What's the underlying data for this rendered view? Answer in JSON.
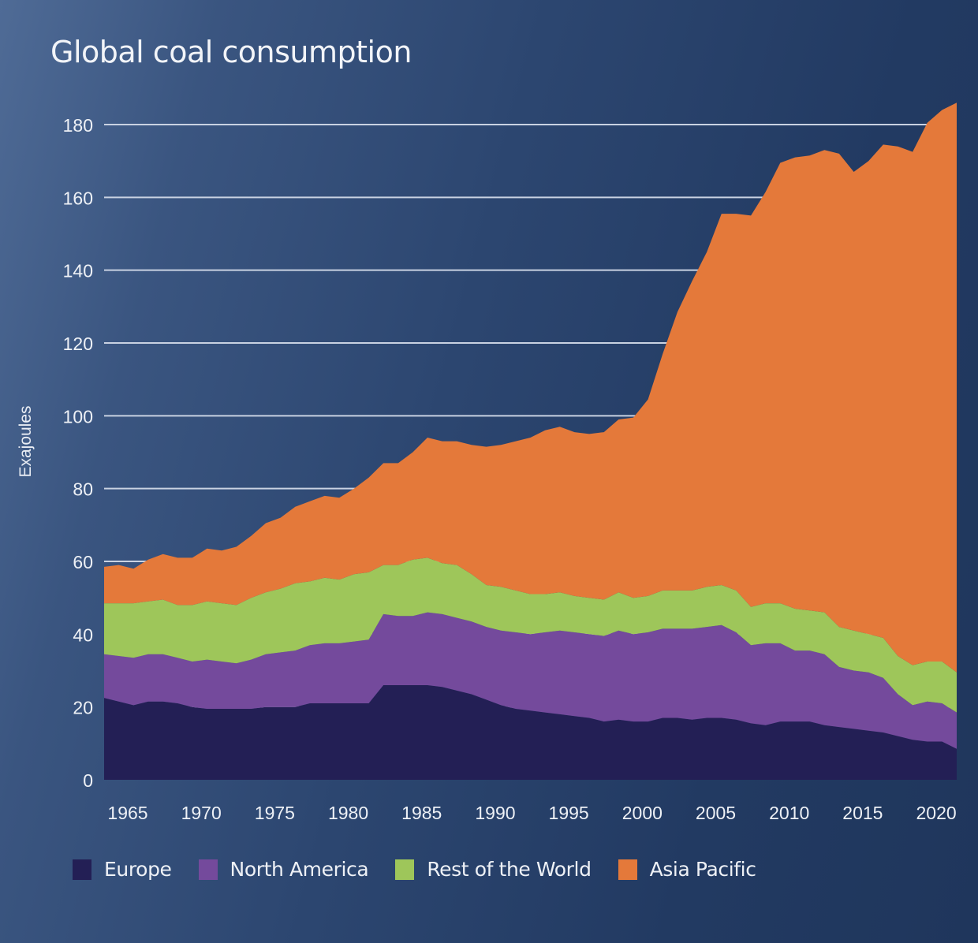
{
  "chart_data": {
    "type": "area",
    "stacked": true,
    "title": "Global coal consumption",
    "xlabel": "",
    "ylabel": "Exajoules",
    "ylim": [
      0,
      180
    ],
    "xlim": [
      1965,
      2023
    ],
    "yticks": [
      0,
      20,
      40,
      60,
      80,
      100,
      120,
      140,
      160,
      180
    ],
    "xticks": [
      1965,
      1970,
      1975,
      1980,
      1985,
      1990,
      1995,
      2000,
      2005,
      2010,
      2015,
      2020
    ],
    "grid": true,
    "legend_position": "bottom",
    "x": [
      1965,
      1966,
      1967,
      1968,
      1969,
      1970,
      1971,
      1972,
      1973,
      1974,
      1975,
      1976,
      1977,
      1978,
      1979,
      1980,
      1981,
      1982,
      1983,
      1984,
      1985,
      1986,
      1987,
      1988,
      1989,
      1990,
      1991,
      1992,
      1993,
      1994,
      1995,
      1996,
      1997,
      1998,
      1999,
      2000,
      2001,
      2002,
      2003,
      2004,
      2005,
      2006,
      2007,
      2008,
      2009,
      2010,
      2011,
      2012,
      2013,
      2014,
      2015,
      2016,
      2017,
      2018,
      2019,
      2020,
      2021,
      2022,
      2023
    ],
    "series": [
      {
        "name": "Europe",
        "color": "#231f55",
        "values": [
          22.5,
          21.5,
          20.5,
          21.5,
          21.5,
          21.0,
          20.0,
          19.5,
          19.5,
          19.5,
          19.5,
          20.0,
          20.0,
          20.0,
          21.0,
          21.0,
          21.0,
          21.0,
          21.0,
          26.0,
          26.0,
          26.0,
          26.0,
          25.5,
          24.5,
          23.5,
          22.0,
          20.5,
          19.5,
          19.0,
          18.5,
          18.0,
          17.5,
          17.0,
          16.0,
          16.5,
          16.0,
          16.0,
          17.0,
          17.0,
          16.5,
          17.0,
          17.0,
          16.5,
          15.5,
          15.0,
          16.0,
          16.0,
          16.0,
          15.0,
          14.5,
          14.0,
          13.5,
          13.0,
          12.0,
          11.0,
          10.5,
          10.5,
          8.5
        ]
      },
      {
        "name": "North America",
        "color": "#744a9c",
        "values": [
          12.0,
          12.5,
          13.0,
          13.0,
          13.0,
          12.5,
          12.5,
          13.5,
          13.0,
          12.5,
          13.5,
          14.5,
          15.0,
          15.5,
          16.0,
          16.5,
          16.5,
          17.0,
          17.5,
          19.5,
          19.0,
          19.0,
          20.0,
          20.0,
          20.0,
          20.0,
          20.0,
          20.5,
          21.0,
          21.0,
          22.0,
          23.0,
          23.0,
          23.0,
          23.5,
          24.5,
          24.0,
          24.5,
          24.5,
          24.5,
          25.0,
          25.0,
          25.5,
          24.0,
          21.5,
          22.5,
          21.5,
          19.5,
          19.5,
          19.5,
          16.5,
          16.0,
          16.0,
          15.0,
          11.5,
          9.5,
          11.0,
          10.5,
          10.0
        ]
      },
      {
        "name": "Rest of the World",
        "color": "#9ec65a",
        "values": [
          14.0,
          14.5,
          15.0,
          14.5,
          15.0,
          14.5,
          15.5,
          16.0,
          16.0,
          16.0,
          17.0,
          17.0,
          17.5,
          18.5,
          17.5,
          18.0,
          17.5,
          18.5,
          18.5,
          13.5,
          14.0,
          15.5,
          15.0,
          14.0,
          14.5,
          13.0,
          11.5,
          12.0,
          11.5,
          11.0,
          10.5,
          10.5,
          10.0,
          10.0,
          10.0,
          10.5,
          10.0,
          10.0,
          10.5,
          10.5,
          10.5,
          11.0,
          11.0,
          11.5,
          10.5,
          11.0,
          11.0,
          11.5,
          11.0,
          11.5,
          11.0,
          11.0,
          10.5,
          11.0,
          10.5,
          11.0,
          11.0,
          11.5,
          11.0
        ]
      },
      {
        "name": "Asia Pacific",
        "color": "#e4793a",
        "values": [
          10.0,
          10.5,
          9.5,
          11.5,
          12.5,
          13.0,
          13.0,
          14.5,
          14.5,
          16.0,
          17.0,
          19.0,
          19.5,
          21.0,
          22.0,
          22.5,
          22.5,
          23.5,
          26.0,
          28.0,
          28.0,
          29.5,
          33.0,
          33.5,
          34.0,
          35.5,
          38.0,
          39.0,
          41.0,
          43.0,
          45.0,
          45.5,
          45.0,
          45.0,
          46.0,
          47.5,
          49.5,
          54.0,
          65.0,
          76.5,
          85.0,
          92.0,
          102.0,
          103.5,
          107.5,
          113.0,
          121.0,
          124.0,
          125.0,
          127.0,
          130.0,
          126.0,
          130.0,
          135.5,
          140.0,
          141.0,
          148.0,
          151.5,
          156.5
        ]
      }
    ]
  }
}
